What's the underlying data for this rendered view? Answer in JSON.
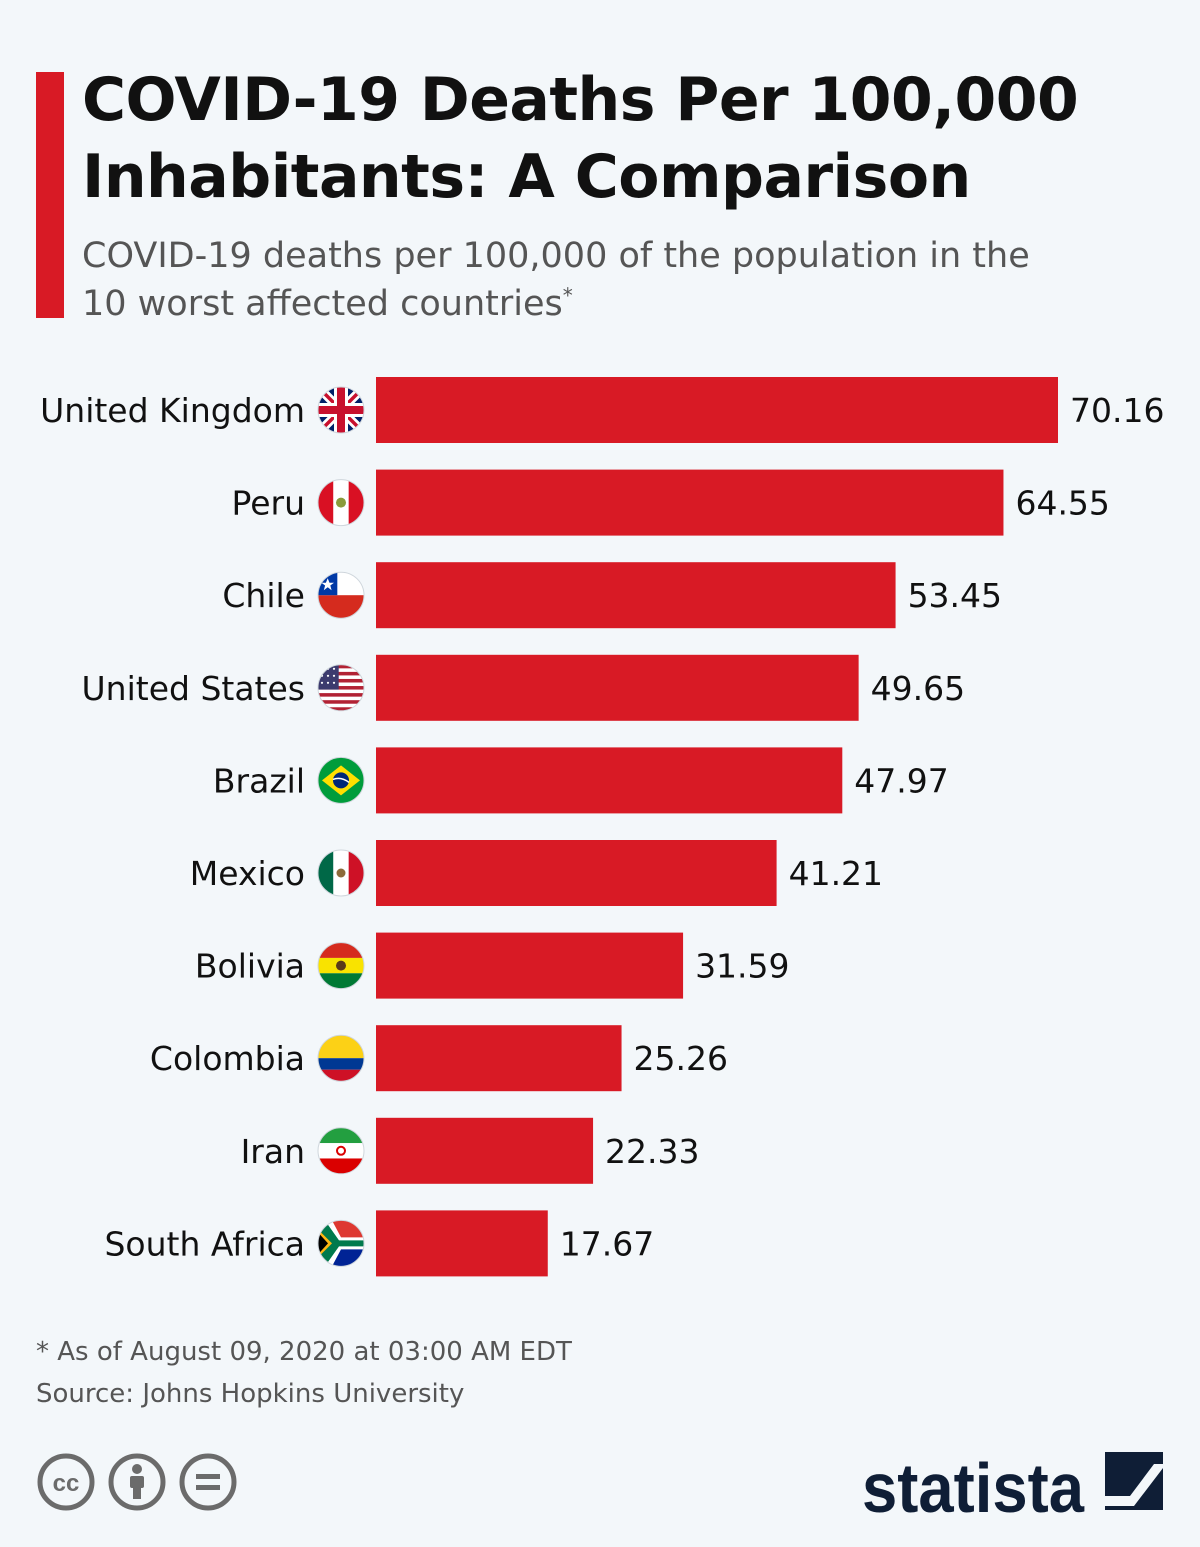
{
  "header": {
    "title": "COVID-19 Deaths Per 100,000 Inhabitants: A Comparison",
    "subtitle": "COVID-19 deaths per 100,000 of the population in the 10 worst affected countries",
    "subtitle_marker": "*"
  },
  "chart_data": {
    "type": "bar",
    "orientation": "horizontal",
    "title": "COVID-19 Deaths Per 100,000 Inhabitants: A Comparison",
    "xlabel": "",
    "ylabel": "",
    "xlim": [
      0,
      70.16
    ],
    "categories": [
      "United Kingdom",
      "Peru",
      "Chile",
      "United States",
      "Brazil",
      "Mexico",
      "Bolivia",
      "Colombia",
      "Iran",
      "South Africa"
    ],
    "values": [
      70.16,
      64.55,
      53.45,
      49.65,
      47.97,
      41.21,
      31.59,
      25.26,
      22.33,
      17.67
    ],
    "value_labels": [
      "70.16",
      "64.55",
      "53.45",
      "49.65",
      "47.97",
      "41.21",
      "31.59",
      "25.26",
      "22.33",
      "17.67"
    ],
    "flag_icons": [
      "uk-flag-icon",
      "peru-flag-icon",
      "chile-flag-icon",
      "us-flag-icon",
      "brazil-flag-icon",
      "mexico-flag-icon",
      "bolivia-flag-icon",
      "colombia-flag-icon",
      "iran-flag-icon",
      "south-africa-flag-icon"
    ],
    "bar_color": "#d81a25",
    "grid": false,
    "legend": "none"
  },
  "footer": {
    "note": "* As of August 09, 2020 at 03:00 AM EDT",
    "source": "Source: Johns Hopkins University",
    "license_icons": [
      "cc-icon",
      "attribution-icon",
      "no-derivatives-icon"
    ],
    "brand": "statista"
  },
  "colors": {
    "accent": "#d81a25",
    "background": "#f3f7fa",
    "text": "#111111",
    "muted": "#555555",
    "brand": "#0f1e36"
  }
}
